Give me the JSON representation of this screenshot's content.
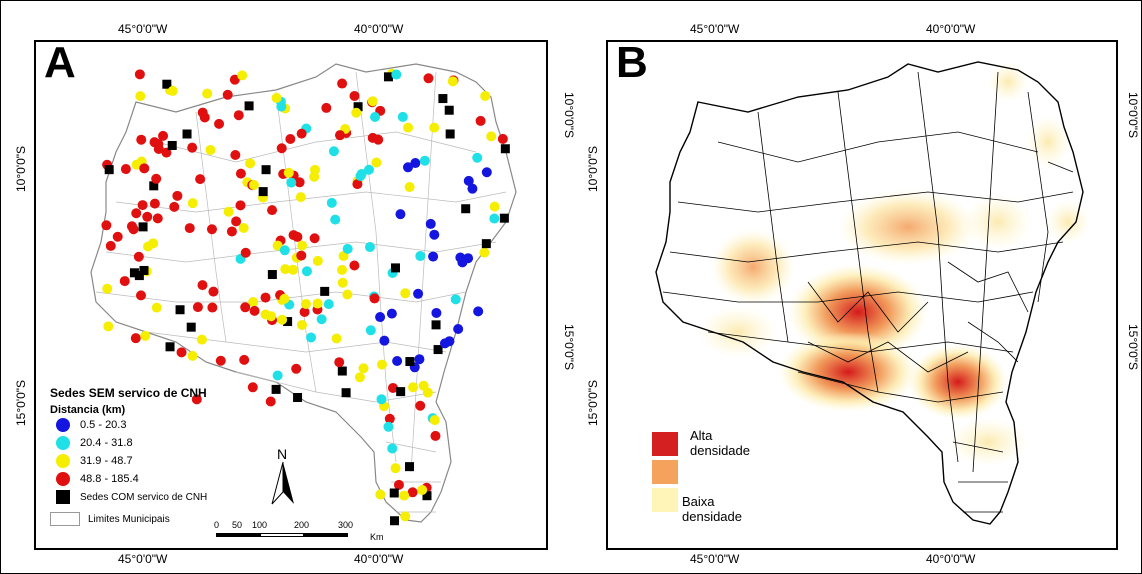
{
  "panels": {
    "left": {
      "letter": "A",
      "top_ticks": [
        "45°0'0\"W",
        "40°0'0\"W"
      ],
      "bottom_ticks": [
        "45°0'0\"W",
        "40°0'0\"W"
      ],
      "left_ticks": [
        "10°0'0\"S",
        "15°0'0\"S"
      ],
      "right_ticks": [
        "10°0'0\"S",
        "15°0'0\"S"
      ],
      "legend": {
        "title": "Sedes SEM servico de CNH",
        "subtitle": "Distancia (km)",
        "classes": [
          {
            "label": "0.5 - 20.3",
            "color": "#1515e0"
          },
          {
            "label": "20.4 - 31.8",
            "color": "#1ee0e6"
          },
          {
            "label": "31.9 - 48.7",
            "color": "#f5ee00"
          },
          {
            "label": "48.8 - 185.4",
            "color": "#e01010"
          }
        ],
        "with_service": "Sedes COM servico de CNH",
        "municipal": "Limites Municipais"
      },
      "north": "N",
      "scale": {
        "labels": [
          "0",
          "50",
          "100",
          "200",
          "300"
        ],
        "unit": "Km"
      }
    },
    "right": {
      "letter": "B",
      "top_ticks": [
        "45°0'0\"W",
        "40°0'0\"W"
      ],
      "bottom_ticks": [
        "45°0'0\"W",
        "40°0'0\"W"
      ],
      "left_ticks": [
        "10°0'0\"S",
        "15°0'0\"S"
      ],
      "right_ticks": [
        "10°0'0\"S",
        "15°0'0\"S"
      ],
      "density_legend": {
        "high": "Alta densidade",
        "low": "Baixa densidade",
        "colors": [
          "#d42020",
          "#f5a35c",
          "#fff5b8"
        ]
      }
    }
  }
}
